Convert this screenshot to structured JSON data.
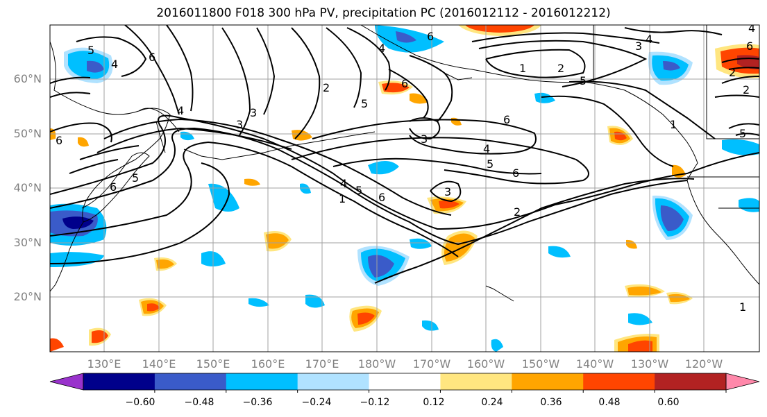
{
  "title": "2016011800 F018 300 hPa PV, precipitation PC (2016012112 - 2016012212)",
  "lat_labels": [
    "60°N",
    "50°N",
    "40°N",
    "30°N",
    "20°N"
  ],
  "lon_labels": [
    "130°E",
    "140°E",
    "150°E",
    "160°E",
    "170°E",
    "180°W",
    "170°W",
    "160°W",
    "150°W",
    "140°W",
    "130°W",
    "120°W"
  ],
  "colorbar": {
    "ticks": [
      "−0.60",
      "−0.48",
      "−0.36",
      "−0.24",
      "−0.12",
      "0.12",
      "0.24",
      "0.36",
      "0.48",
      "0.60"
    ],
    "colors": [
      "#9932CC",
      "#00008B",
      "#3A5BC9",
      "#00BFFF",
      "#B0E2FF",
      "#FFFFFF",
      "#FFE680",
      "#FFA500",
      "#FF4500",
      "#B22222",
      "#FF88AA"
    ]
  },
  "colors": {
    "grid": "#a0a0a0",
    "contour": "#000000",
    "label_gray": "#808080"
  }
}
